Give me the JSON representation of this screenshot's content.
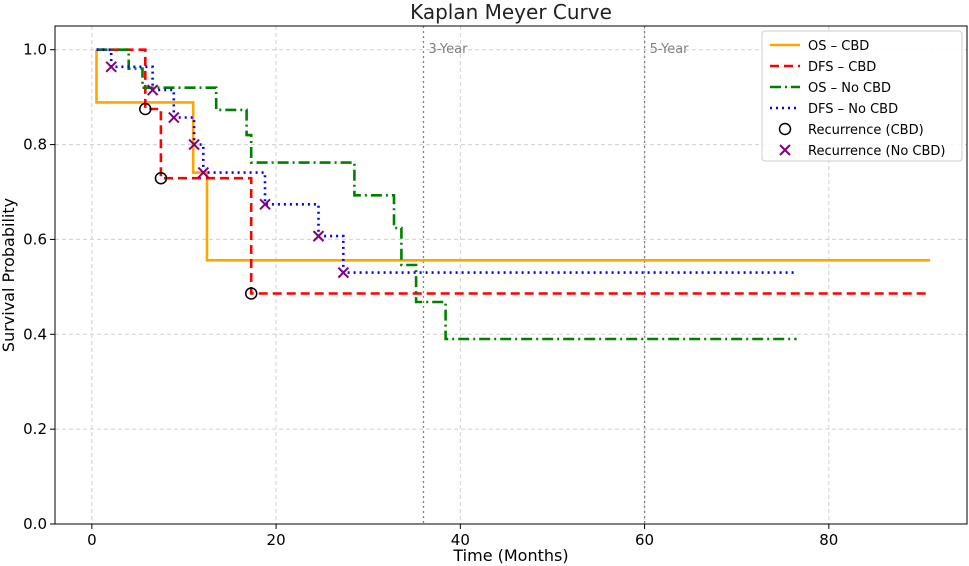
{
  "chart_data": {
    "type": "line",
    "title": "Kaplan Meyer Curve",
    "xlabel": "Time (Months)",
    "ylabel": "Survival Probability",
    "xlim": [
      -4,
      95
    ],
    "ylim": [
      0.0,
      1.05
    ],
    "xticks": [
      "0",
      "20",
      "40",
      "60",
      "80"
    ],
    "yticks": [
      "0.0",
      "0.2",
      "0.4",
      "0.6",
      "0.8",
      "1.0"
    ],
    "grid": true,
    "legend_position": "top-right",
    "reference_lines": [
      {
        "x": 36,
        "label": "3-Year"
      },
      {
        "x": 60,
        "label": "5-Year"
      }
    ],
    "series": [
      {
        "name": "OS – CBD",
        "color": "#FFA500",
        "style": "solid",
        "points": [
          [
            0.5,
            1.0
          ],
          [
            0.5,
            0.889
          ],
          [
            11,
            0.889
          ],
          [
            11,
            0.741
          ],
          [
            12.5,
            0.741
          ],
          [
            12.5,
            0.556
          ],
          [
            91,
            0.556
          ]
        ]
      },
      {
        "name": "DFS – CBD",
        "color": "#FF0000",
        "style": "dashed",
        "points": [
          [
            0.5,
            1.0
          ],
          [
            5.8,
            1.0
          ],
          [
            5.8,
            0.875
          ],
          [
            7.5,
            0.875
          ],
          [
            7.5,
            0.729
          ],
          [
            17.3,
            0.729
          ],
          [
            17.3,
            0.486
          ],
          [
            91,
            0.486
          ]
        ]
      },
      {
        "name": "OS – No CBD",
        "color": "#008000",
        "style": "dashdot",
        "points": [
          [
            0.5,
            1.0
          ],
          [
            4,
            1.0
          ],
          [
            4,
            0.96
          ],
          [
            5.5,
            0.96
          ],
          [
            5.5,
            0.92
          ],
          [
            13.5,
            0.92
          ],
          [
            13.5,
            0.873
          ],
          [
            16.8,
            0.873
          ],
          [
            16.8,
            0.82
          ],
          [
            17.3,
            0.82
          ],
          [
            17.3,
            0.762
          ],
          [
            28.5,
            0.762
          ],
          [
            28.5,
            0.693
          ],
          [
            32.8,
            0.693
          ],
          [
            32.8,
            0.624
          ],
          [
            33.6,
            0.624
          ],
          [
            33.6,
            0.546
          ],
          [
            35.2,
            0.546
          ],
          [
            35.2,
            0.468
          ],
          [
            38.4,
            0.468
          ],
          [
            38.4,
            0.39
          ],
          [
            76.5,
            0.39
          ]
        ]
      },
      {
        "name": "DFS – No CBD",
        "color": "#0000FF",
        "style": "dotted",
        "points": [
          [
            0.5,
            1.0
          ],
          [
            2.1,
            1.0
          ],
          [
            2.1,
            0.964
          ],
          [
            6.6,
            0.964
          ],
          [
            6.6,
            0.915
          ],
          [
            8.9,
            0.915
          ],
          [
            8.9,
            0.857
          ],
          [
            11.1,
            0.857
          ],
          [
            11.1,
            0.8
          ],
          [
            12.1,
            0.8
          ],
          [
            12.1,
            0.741
          ],
          [
            18.8,
            0.741
          ],
          [
            18.8,
            0.674
          ],
          [
            24.6,
            0.674
          ],
          [
            24.6,
            0.607
          ],
          [
            27.3,
            0.607
          ],
          [
            27.3,
            0.53
          ],
          [
            76.5,
            0.53
          ]
        ]
      }
    ],
    "markers": [
      {
        "name": "Recurrence (CBD)",
        "shape": "circle",
        "color": "#000000",
        "points": [
          [
            5.8,
            0.875
          ],
          [
            7.5,
            0.729
          ],
          [
            17.3,
            0.486
          ]
        ]
      },
      {
        "name": "Recurrence (No CBD)",
        "shape": "x",
        "color": "#800080",
        "points": [
          [
            2.1,
            0.964
          ],
          [
            6.6,
            0.915
          ],
          [
            8.9,
            0.857
          ],
          [
            11.1,
            0.8
          ],
          [
            12.1,
            0.741
          ],
          [
            18.8,
            0.674
          ],
          [
            24.6,
            0.607
          ],
          [
            27.3,
            0.53
          ]
        ]
      }
    ]
  }
}
